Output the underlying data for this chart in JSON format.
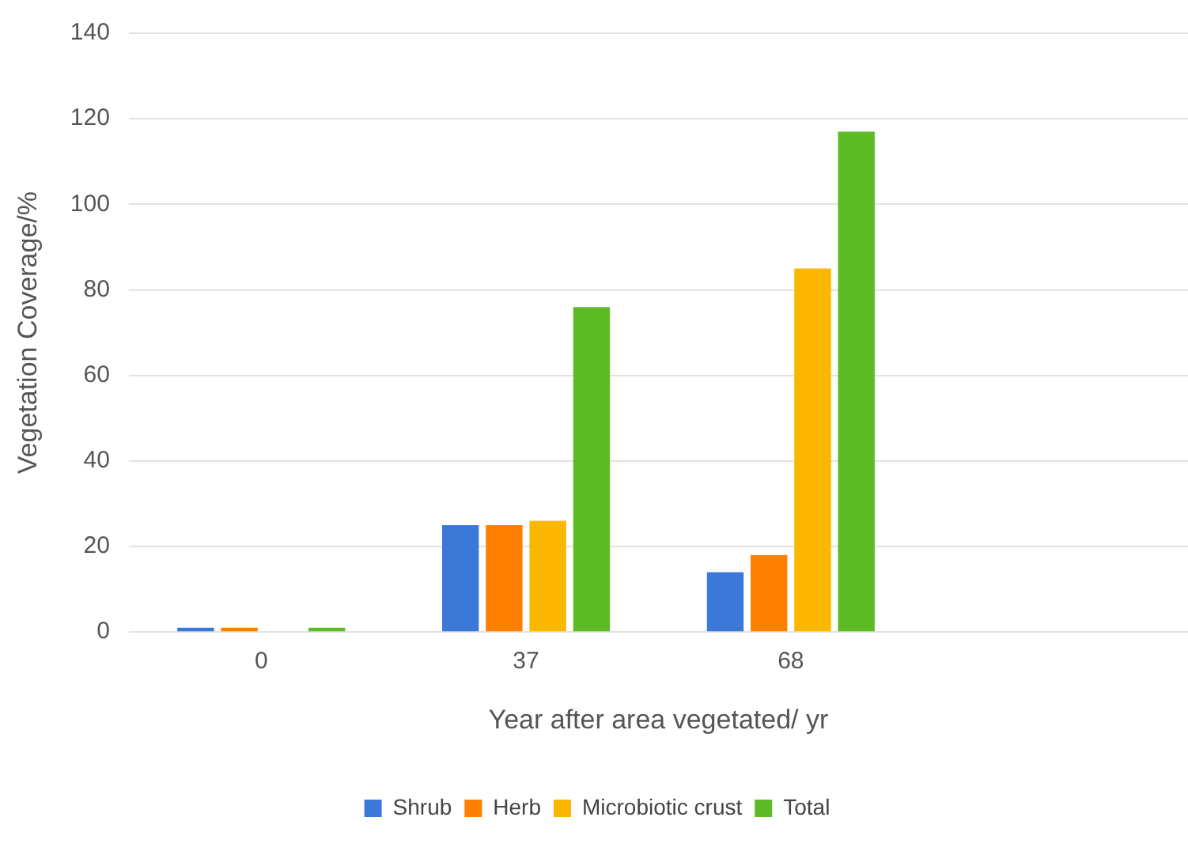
{
  "chart_data": {
    "type": "bar",
    "xlabel": "Year after area vegetated/ yr",
    "ylabel": "Vegetation Coverage/%",
    "categories": [
      "0",
      "37",
      "68",
      null
    ],
    "series": [
      {
        "name": "Shrub",
        "color": "#3c78d8",
        "values": [
          1,
          25,
          14,
          null
        ]
      },
      {
        "name": "Herb",
        "color": "#ff7f00",
        "values": [
          1,
          25,
          18,
          null
        ]
      },
      {
        "name": "Microbiotic crust",
        "color": "#fbb700",
        "values": [
          0,
          26,
          85,
          null
        ]
      },
      {
        "name": "Total",
        "color": "#5dbb25",
        "values": [
          1,
          76,
          117,
          null
        ]
      }
    ],
    "ylim": [
      0,
      140
    ],
    "yticks": [
      0,
      20,
      40,
      60,
      80,
      100,
      120,
      140
    ],
    "grid": "y",
    "legend": "bottom"
  }
}
